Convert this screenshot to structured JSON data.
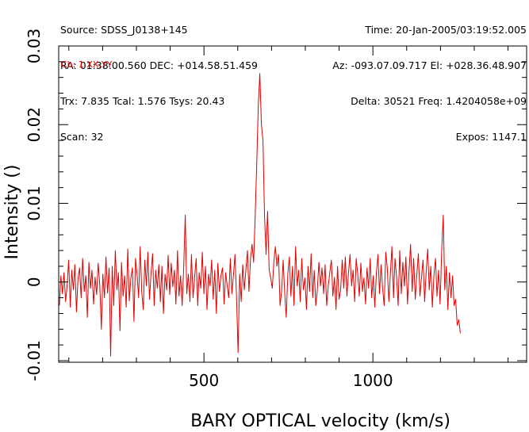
{
  "header": {
    "left": [
      "Source: SDSS_J0138+145",
      "RA: 01:38:00.560 DEC: +014.58.51.459",
      "Trx: 7.835 Tcal: 1.576 Tsys: 20.43",
      "Scan: 32"
    ],
    "right": [
      "Time: 20-Jan-2005/03:19:52.005",
      "Az: -093.07.09.717 El: +028.36.48.907",
      "Delta: 30521 Freq: 1.4204058e+09",
      "Expos: 1147.1"
    ]
  },
  "chart_data": {
    "type": "line",
    "xlabel": "BARY OPTICAL velocity (km/s)",
    "ylabel": "Intensity ()",
    "xlim": [
      70,
      1455
    ],
    "ylim": [
      -0.0102,
      0.03
    ],
    "x_ticks": [
      500,
      1000
    ],
    "y_ticks": [
      -0.01,
      0,
      0.01,
      0.02,
      0.03
    ],
    "y_tick_labels": [
      "-0.01",
      "0",
      "0.01",
      "0.02",
      "0.03"
    ],
    "grid": false,
    "series": [
      {
        "name": "Ch: 1 XX,YY",
        "color": "#e00000",
        "x_start": 72,
        "x_step": 4.6,
        "values": [
          -0.003,
          0.0008,
          -0.0015,
          0.0012,
          -0.0025,
          -0.0005,
          0.0028,
          -0.0032,
          0.0015,
          -0.001,
          0.0022,
          -0.0038,
          0.0005,
          0.0018,
          -0.002,
          0.003,
          -0.0012,
          0.0008,
          -0.0045,
          0.0025,
          -0.0008,
          0.0015,
          -0.0028,
          0.0006,
          -0.0016,
          0.0024,
          -0.0004,
          -0.006,
          0.001,
          -0.002,
          0.0032,
          -0.0014,
          0.0018,
          -0.0094,
          0.002,
          -0.003,
          0.004,
          -0.001,
          0.0012,
          -0.0062,
          0.0025,
          -0.0018,
          0.0008,
          -0.0032,
          0.0042,
          -0.0024,
          0.0005,
          0.0018,
          -0.005,
          0.003,
          0.001,
          -0.002,
          0.0045,
          -0.0012,
          -0.0035,
          0.0028,
          -0.0005,
          0.0038,
          -0.0022,
          0.0012,
          0.0036,
          -0.003,
          0.0015,
          -0.0008,
          0.0022,
          -0.0025,
          0.002,
          -0.004,
          0.001,
          -0.001,
          0.0034,
          -0.0016,
          0.0024,
          -0.0006,
          0.0015,
          -0.0028,
          0.004,
          -0.0018,
          0.0008,
          -0.003,
          0.0018,
          0.0085,
          -0.0015,
          0.001,
          -0.0025,
          0.0035,
          -0.002,
          0.0005,
          0.003,
          -0.003,
          0.0012,
          -0.0008,
          0.0038,
          -0.0015,
          0.002,
          -0.0035,
          0.001,
          -0.0005,
          0.0028,
          -0.0022,
          0.0015,
          -0.004,
          0.0024,
          -0.0012,
          0.0008,
          0.0018,
          -0.0028,
          0.0012,
          -0.0005,
          -0.002,
          0.003,
          -0.0015,
          0.0008,
          0.0035,
          -0.0018,
          -0.009,
          0.001,
          -0.0025,
          0.0022,
          -0.001,
          0.0015,
          0.004,
          -0.0012,
          0.003,
          0.0048,
          0.0025,
          0.0085,
          0.015,
          0.0225,
          0.0265,
          0.02,
          0.018,
          0.0085,
          0.0035,
          0.009,
          0.0015,
          0.0005,
          -0.0008,
          0.0025,
          0.0045,
          0.002,
          0.0035,
          -0.003,
          -0.0012,
          0.0028,
          -0.0015,
          -0.0045,
          0.001,
          0.0032,
          -0.0018,
          0.002,
          -0.003,
          0.0045,
          -0.0005,
          0.0015,
          -0.0025,
          0.003,
          -0.001,
          0.0005,
          -0.0035,
          0.002,
          -0.0012,
          0.0036,
          -0.002,
          0.0015,
          -0.003,
          -0.001,
          0.0025,
          -0.0005,
          0.0018,
          -0.0015,
          0.0022,
          -0.003,
          -0.0005,
          0.0012,
          0.0028,
          -0.0018,
          0.0006,
          -0.0035,
          0.002,
          -0.0022,
          -0.001,
          0.0028,
          -0.0008,
          0.0032,
          -0.0018,
          0.001,
          0.0035,
          -0.0005,
          0.0015,
          -0.0025,
          0.003,
          0.001,
          -0.0018,
          0.0024,
          -0.0012,
          0.0005,
          -0.0028,
          0.0018,
          -0.0008,
          0.003,
          -0.002,
          0.0008,
          -0.0032,
          0.0012,
          0.0035,
          -0.0015,
          0.0022,
          -0.0008,
          -0.003,
          0.0038,
          0.0018,
          -0.0025,
          0.001,
          0.0045,
          -0.002,
          0.003,
          0.0005,
          -0.003,
          0.004,
          -0.0015,
          0.0025,
          -0.0005,
          0.0032,
          -0.0028,
          0.0015,
          0.0048,
          -0.0012,
          0.003,
          -0.0022,
          0.001,
          0.0036,
          -0.0018,
          0.0005,
          0.0028,
          -0.0025,
          0.0012,
          0.0042,
          -0.001,
          0.002,
          -0.0032,
          0.0008,
          0.003,
          -0.0018,
          0.0015,
          -0.0028,
          0.004,
          0.0085,
          -0.001,
          0.002,
          -0.0035,
          0.0012,
          -0.002,
          0.0008,
          -0.003,
          -0.0022,
          -0.0055,
          -0.0048,
          -0.0065
        ]
      }
    ]
  }
}
